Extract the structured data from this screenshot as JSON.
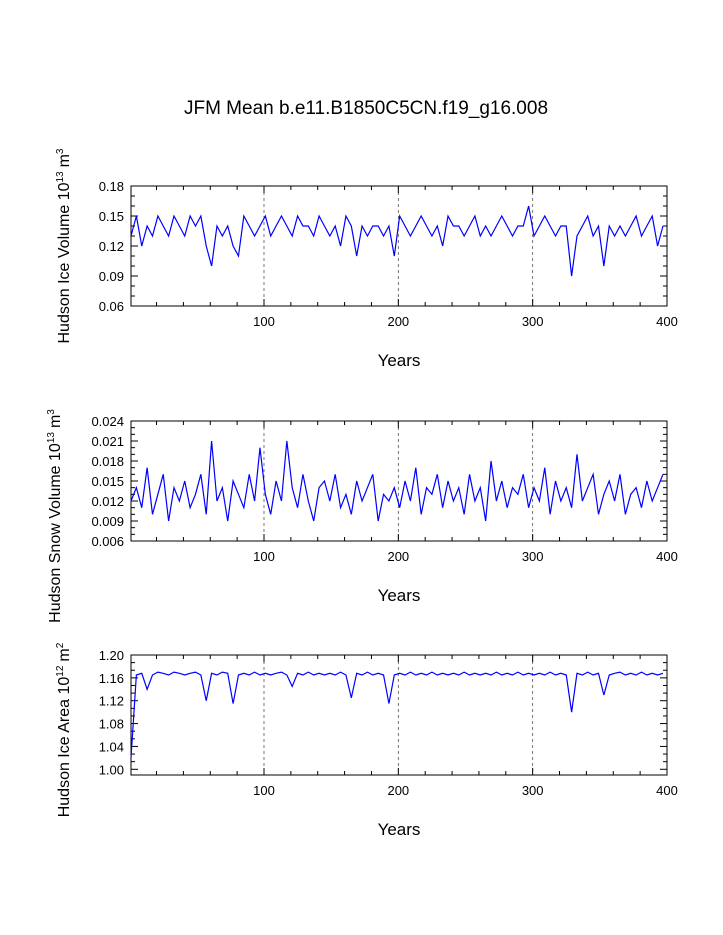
{
  "title": "JFM Mean b.e11.B1850C5CN.f19_g16.008",
  "line_color": "#0000ff",
  "chart_data": [
    {
      "type": "line",
      "ylabel_main": "Hudson Ice Volume 10",
      "ylabel_exp": "13",
      "ylabel_unit": "m",
      "ylabel_unit_exp": "3",
      "xlabel": "Years",
      "xlim": [
        1,
        400
      ],
      "ylim": [
        0.06,
        0.18
      ],
      "xticks": [
        100,
        200,
        300,
        400
      ],
      "xtick_labels": [
        "100",
        "200",
        "300",
        "400"
      ],
      "yticks": [
        0.06,
        0.09,
        0.12,
        0.15,
        0.18
      ],
      "ytick_labels": [
        "0.06",
        "0.09",
        "0.12",
        "0.15",
        "0.18"
      ],
      "series": [
        {
          "x_start": 1,
          "x_step": 4,
          "values": [
            0.13,
            0.15,
            0.12,
            0.14,
            0.13,
            0.15,
            0.14,
            0.13,
            0.15,
            0.14,
            0.13,
            0.15,
            0.14,
            0.15,
            0.12,
            0.1,
            0.14,
            0.13,
            0.14,
            0.12,
            0.11,
            0.15,
            0.14,
            0.13,
            0.14,
            0.15,
            0.13,
            0.14,
            0.15,
            0.14,
            0.13,
            0.15,
            0.14,
            0.14,
            0.13,
            0.15,
            0.14,
            0.13,
            0.14,
            0.12,
            0.15,
            0.14,
            0.11,
            0.14,
            0.13,
            0.14,
            0.14,
            0.13,
            0.14,
            0.11,
            0.15,
            0.14,
            0.13,
            0.14,
            0.15,
            0.14,
            0.13,
            0.14,
            0.12,
            0.15,
            0.14,
            0.14,
            0.13,
            0.14,
            0.15,
            0.13,
            0.14,
            0.13,
            0.14,
            0.15,
            0.14,
            0.13,
            0.14,
            0.14,
            0.16,
            0.13,
            0.14,
            0.15,
            0.14,
            0.13,
            0.14,
            0.14,
            0.09,
            0.13,
            0.14,
            0.15,
            0.13,
            0.14,
            0.1,
            0.14,
            0.13,
            0.14,
            0.13,
            0.14,
            0.15,
            0.13,
            0.14,
            0.15,
            0.12,
            0.14
          ]
        }
      ]
    },
    {
      "type": "line",
      "ylabel_main": "Hudson Snow Volume 10",
      "ylabel_exp": "13",
      "ylabel_unit": "m",
      "ylabel_unit_exp": "3",
      "xlabel": "Years",
      "xlim": [
        1,
        400
      ],
      "ylim": [
        0.006,
        0.024
      ],
      "xticks": [
        100,
        200,
        300,
        400
      ],
      "xtick_labels": [
        "100",
        "200",
        "300",
        "400"
      ],
      "yticks": [
        0.006,
        0.009,
        0.012,
        0.015,
        0.018,
        0.021,
        0.024
      ],
      "ytick_labels": [
        "0.006",
        "0.009",
        "0.012",
        "0.015",
        "0.018",
        "0.021",
        "0.024"
      ],
      "series": [
        {
          "x_start": 1,
          "x_step": 4,
          "values": [
            0.012,
            0.014,
            0.011,
            0.017,
            0.01,
            0.013,
            0.016,
            0.009,
            0.014,
            0.012,
            0.015,
            0.011,
            0.013,
            0.016,
            0.01,
            0.021,
            0.012,
            0.014,
            0.009,
            0.015,
            0.013,
            0.011,
            0.016,
            0.012,
            0.02,
            0.013,
            0.01,
            0.015,
            0.012,
            0.021,
            0.014,
            0.011,
            0.016,
            0.012,
            0.009,
            0.014,
            0.015,
            0.012,
            0.016,
            0.011,
            0.013,
            0.01,
            0.015,
            0.012,
            0.014,
            0.016,
            0.009,
            0.013,
            0.012,
            0.014,
            0.011,
            0.015,
            0.012,
            0.017,
            0.01,
            0.014,
            0.013,
            0.016,
            0.011,
            0.015,
            0.012,
            0.014,
            0.01,
            0.016,
            0.012,
            0.014,
            0.009,
            0.018,
            0.012,
            0.015,
            0.011,
            0.014,
            0.013,
            0.016,
            0.011,
            0.014,
            0.012,
            0.017,
            0.01,
            0.015,
            0.012,
            0.014,
            0.011,
            0.019,
            0.012,
            0.014,
            0.016,
            0.01,
            0.013,
            0.015,
            0.012,
            0.016,
            0.01,
            0.013,
            0.014,
            0.011,
            0.015,
            0.012,
            0.014,
            0.016
          ]
        }
      ]
    },
    {
      "type": "line",
      "ylabel_main": "Hudson Ice Area 10",
      "ylabel_exp": "12",
      "ylabel_unit": "m",
      "ylabel_unit_exp": "2",
      "xlabel": "Years",
      "xlim": [
        1,
        400
      ],
      "ylim": [
        0.99,
        1.2
      ],
      "xticks": [
        100,
        200,
        300,
        400
      ],
      "xtick_labels": [
        "100",
        "200",
        "300",
        "400"
      ],
      "yticks": [
        1.0,
        1.04,
        1.08,
        1.12,
        1.16,
        1.2
      ],
      "ytick_labels": [
        "1.00",
        "1.04",
        "1.08",
        "1.12",
        "1.16",
        "1.20"
      ],
      "series": [
        {
          "x_start": 1,
          "x_step": 4,
          "values": [
            1.02,
            1.165,
            1.168,
            1.14,
            1.165,
            1.17,
            1.168,
            1.165,
            1.17,
            1.168,
            1.165,
            1.168,
            1.17,
            1.165,
            1.12,
            1.168,
            1.165,
            1.17,
            1.168,
            1.115,
            1.165,
            1.168,
            1.165,
            1.17,
            1.165,
            1.168,
            1.165,
            1.168,
            1.17,
            1.165,
            1.145,
            1.168,
            1.165,
            1.17,
            1.165,
            1.168,
            1.165,
            1.168,
            1.165,
            1.17,
            1.165,
            1.125,
            1.168,
            1.165,
            1.17,
            1.165,
            1.168,
            1.165,
            1.115,
            1.165,
            1.168,
            1.165,
            1.17,
            1.165,
            1.168,
            1.165,
            1.17,
            1.165,
            1.168,
            1.165,
            1.168,
            1.165,
            1.17,
            1.165,
            1.168,
            1.165,
            1.168,
            1.165,
            1.17,
            1.165,
            1.168,
            1.165,
            1.17,
            1.165,
            1.168,
            1.165,
            1.168,
            1.165,
            1.17,
            1.165,
            1.168,
            1.165,
            1.1,
            1.168,
            1.165,
            1.17,
            1.165,
            1.168,
            1.13,
            1.165,
            1.168,
            1.17,
            1.165,
            1.168,
            1.165,
            1.17,
            1.165,
            1.168,
            1.165,
            1.168
          ]
        }
      ]
    }
  ]
}
